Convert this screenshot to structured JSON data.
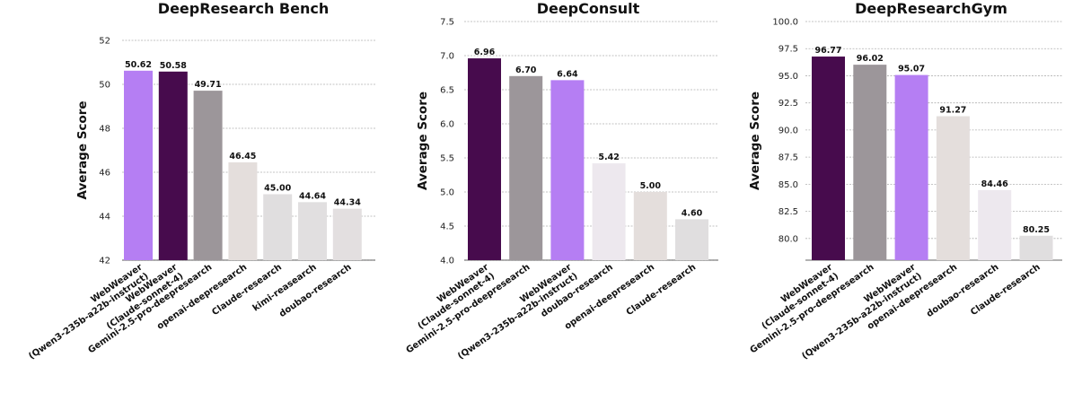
{
  "chart_data": [
    {
      "type": "bar",
      "title": "DeepResearch Bench",
      "ylabel": "Average Score",
      "ylim": [
        42,
        52
      ],
      "yticks": [
        "42",
        "44",
        "46",
        "48",
        "50",
        "52"
      ],
      "grid": true,
      "categories": [
        [
          "WebWeaver",
          "(Qwen3-235b-a22b-instruct)"
        ],
        [
          "WebWeaver",
          "(Claude-sonnet-4)"
        ],
        [
          "Gemini-2.5-pro-deepresearch"
        ],
        [
          "openai-deepresearch"
        ],
        [
          "Claude-research"
        ],
        [
          "kimi-reasearch"
        ],
        [
          "doubao-research"
        ]
      ],
      "values": [
        50.62,
        50.58,
        49.71,
        46.45,
        45.0,
        44.64,
        44.34
      ],
      "labels": [
        "50.62",
        "50.58",
        "49.71",
        "46.45",
        "45.00",
        "44.64",
        "44.34"
      ],
      "colors": [
        "#b57ef3",
        "#470b4d",
        "#9c969a",
        "#e4dedc",
        "#e0dedf",
        "#e1dfe0",
        "#e3dfe0"
      ]
    },
    {
      "type": "bar",
      "title": "DeepConsult",
      "ylabel": "Average Score",
      "ylim": [
        4.0,
        7.5
      ],
      "yticks": [
        "4.0",
        "4.5",
        "5.0",
        "5.5",
        "6.0",
        "6.5",
        "7.0",
        "7.5"
      ],
      "grid": true,
      "categories": [
        [
          "WebWeaver",
          "(Claude-sonnet-4)"
        ],
        [
          "Gemini-2.5-pro-deepresearch"
        ],
        [
          "WebWeaver",
          "(Qwen3-235b-a22b-instruct)"
        ],
        [
          "doubao-research"
        ],
        [
          "openai-deepresearch"
        ],
        [
          "Claude-research"
        ]
      ],
      "values": [
        6.96,
        6.7,
        6.64,
        5.42,
        5.0,
        4.6
      ],
      "labels": [
        "6.96",
        "6.70",
        "6.64",
        "5.42",
        "5.00",
        "4.60"
      ],
      "colors": [
        "#470b4d",
        "#9c969a",
        "#b57ef3",
        "#ede8ee",
        "#e4dedc",
        "#e0dedf"
      ]
    },
    {
      "type": "bar",
      "title": "DeepResearchGym",
      "ylabel": "Average Score",
      "ylim": [
        78,
        100
      ],
      "yticks": [
        "80.0",
        "82.5",
        "85.0",
        "87.5",
        "90.0",
        "92.5",
        "95.0",
        "97.5",
        "100.0"
      ],
      "grid": true,
      "categories": [
        [
          "WebWeaver",
          "(Claude-sonnet-4)"
        ],
        [
          "Gemini-2.5-pro-deepresearch"
        ],
        [
          "WebWeaver",
          "(Qwen3-235b-a22b-instruct)"
        ],
        [
          "openai-deepresearch"
        ],
        [
          "doubao-research"
        ],
        [
          "Claude-research"
        ]
      ],
      "values": [
        96.77,
        96.02,
        95.07,
        91.27,
        84.46,
        80.25
      ],
      "labels": [
        "96.77",
        "96.02",
        "95.07",
        "91.27",
        "84.46",
        "80.25"
      ],
      "colors": [
        "#470b4d",
        "#9c969a",
        "#b57ef3",
        "#e4dedc",
        "#ede8ee",
        "#e0dedf"
      ]
    }
  ]
}
